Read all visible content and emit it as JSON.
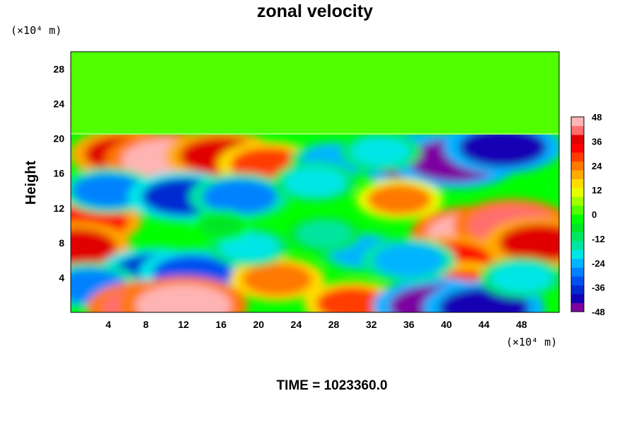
{
  "chart_data": {
    "type": "heatmap",
    "title": "zonal velocity",
    "ylabel": "Height",
    "xlabel": "",
    "x_unit": "(×10⁴ m)",
    "y_unit": "(×10⁴ m)",
    "xlim": [
      0,
      52
    ],
    "ylim": [
      0,
      30
    ],
    "x_ticks": [
      "4",
      "8",
      "12",
      "16",
      "20",
      "24",
      "28",
      "32",
      "36",
      "40",
      "44",
      "48"
    ],
    "x_tick_values": [
      4,
      8,
      12,
      16,
      20,
      24,
      28,
      32,
      36,
      40,
      44,
      48
    ],
    "y_ticks": [
      "4",
      "8",
      "12",
      "16",
      "20",
      "24",
      "28"
    ],
    "y_tick_values": [
      4,
      8,
      12,
      16,
      20,
      24,
      28
    ],
    "colorbar": {
      "min": -48,
      "max": 48,
      "step": 6,
      "tick_labels": [
        "48",
        "36",
        "24",
        "12",
        "0",
        "-12",
        "-24",
        "-36",
        "-48"
      ],
      "tick_values": [
        48,
        36,
        24,
        12,
        0,
        -12,
        -24,
        -36,
        -48
      ],
      "colors": [
        "#7d00a0",
        "#1200b4",
        "#002ad2",
        "#0050f0",
        "#0082ff",
        "#00b4ff",
        "#00e6e6",
        "#00e6a0",
        "#00e664",
        "#00e628",
        "#00ff00",
        "#50ff00",
        "#a0ff00",
        "#e6ff00",
        "#ffdc00",
        "#ffaa00",
        "#ff7800",
        "#ff3c00",
        "#ff0000",
        "#e10000",
        "#ff6e6e",
        "#ffb4b4"
      ]
    },
    "top_layer_value": 0,
    "features": [
      {
        "x": 6,
        "y": 18.2,
        "value": 38
      },
      {
        "x": 10.5,
        "y": 17.5,
        "value": 46
      },
      {
        "x": 16,
        "y": 18,
        "value": 36
      },
      {
        "x": 21,
        "y": 17,
        "value": 30
      },
      {
        "x": 2,
        "y": 10.5,
        "value": 32
      },
      {
        "x": 0.5,
        "y": 7.5,
        "value": 36
      },
      {
        "x": 37,
        "y": 17.5,
        "value": -44
      },
      {
        "x": 41,
        "y": 17.5,
        "value": -46
      },
      {
        "x": 46,
        "y": 19,
        "value": -40
      },
      {
        "x": 28,
        "y": 17.5,
        "value": -22
      },
      {
        "x": 4,
        "y": 14,
        "value": -28
      },
      {
        "x": 12,
        "y": 13.3,
        "value": -36
      },
      {
        "x": 18,
        "y": 13.3,
        "value": -30
      },
      {
        "x": 43,
        "y": 9,
        "value": 46
      },
      {
        "x": 47,
        "y": 10,
        "value": 40
      },
      {
        "x": 50,
        "y": 8,
        "value": 36
      },
      {
        "x": 40.5,
        "y": 6,
        "value": 34
      },
      {
        "x": 42,
        "y": 3,
        "value": 30
      },
      {
        "x": 9,
        "y": 4.5,
        "value": -38
      },
      {
        "x": 13,
        "y": 4.5,
        "value": -34
      },
      {
        "x": 2,
        "y": 3,
        "value": -30
      },
      {
        "x": 22,
        "y": 3.8,
        "value": 26
      },
      {
        "x": 8,
        "y": 0.5,
        "value": 40
      },
      {
        "x": 12,
        "y": 0.8,
        "value": 46
      },
      {
        "x": 30,
        "y": 1,
        "value": 28
      },
      {
        "x": 39,
        "y": 0.7,
        "value": -46
      },
      {
        "x": 44,
        "y": 0.5,
        "value": -42
      },
      {
        "x": 31,
        "y": 7,
        "value": -22
      },
      {
        "x": 36,
        "y": 6,
        "value": -26
      },
      {
        "x": 19,
        "y": 7.5,
        "value": -18
      },
      {
        "x": 27,
        "y": 9,
        "value": -14
      },
      {
        "x": 16,
        "y": 10,
        "value": -6
      },
      {
        "x": 35,
        "y": 13,
        "value": 22
      },
      {
        "x": 26,
        "y": 15,
        "value": -20
      },
      {
        "x": 48,
        "y": 4,
        "value": -20
      },
      {
        "x": 33,
        "y": 18.5,
        "value": -18
      }
    ]
  },
  "footer": {
    "time_text": "TIME = 1023360.0"
  }
}
